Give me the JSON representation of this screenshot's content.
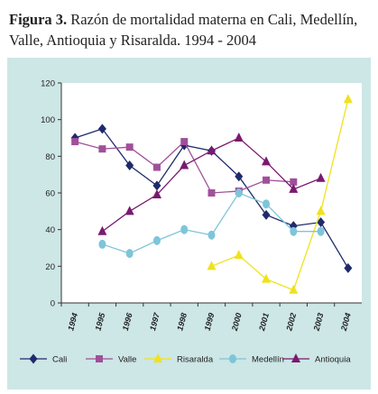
{
  "caption": {
    "figure_label": "Figura 3.",
    "text": " Razón de mortalidad materna en Cali, Medellín, Valle, Antioquia y Risaralda. 1994 - 2004"
  },
  "chart_data": {
    "type": "line",
    "title": "Figura 3. Razón de mortalidad materna en Cali, Medellín, Valle, Antioquia y Risaralda. 1994 - 2004",
    "xlabel": "",
    "ylabel": "",
    "ylim": [
      0,
      120
    ],
    "yticks": [
      0,
      20,
      40,
      60,
      80,
      100,
      120
    ],
    "grid": false,
    "legend_position": "bottom",
    "categories": [
      "1994",
      "1995",
      "1996",
      "1997",
      "1998",
      "1999",
      "2000",
      "2001",
      "2002",
      "2003",
      "2004"
    ],
    "series": [
      {
        "name": "Cali",
        "color": "#1f2a6b",
        "marker": "diamond",
        "values": [
          90,
          95,
          75,
          64,
          86,
          83,
          69,
          48,
          42,
          44,
          19
        ]
      },
      {
        "name": "Valle",
        "color": "#a0509a",
        "marker": "square",
        "values": [
          88,
          84,
          85,
          74,
          88,
          60,
          61,
          67,
          66,
          null,
          null
        ]
      },
      {
        "name": "Risaralda",
        "color": "#f0e21c",
        "marker": "triangle",
        "values": [
          null,
          null,
          null,
          null,
          null,
          20,
          26,
          13,
          7,
          50,
          111
        ]
      },
      {
        "name": "Medellín",
        "color": "#7ec5d9",
        "marker": "circle",
        "values": [
          null,
          32,
          27,
          34,
          40,
          37,
          60,
          54,
          39,
          39,
          null
        ]
      },
      {
        "name": "Antioquia",
        "color": "#7a1a70",
        "marker": "triangle",
        "values": [
          null,
          39,
          50,
          59,
          75,
          83,
          90,
          77,
          62,
          68,
          null
        ]
      }
    ]
  }
}
